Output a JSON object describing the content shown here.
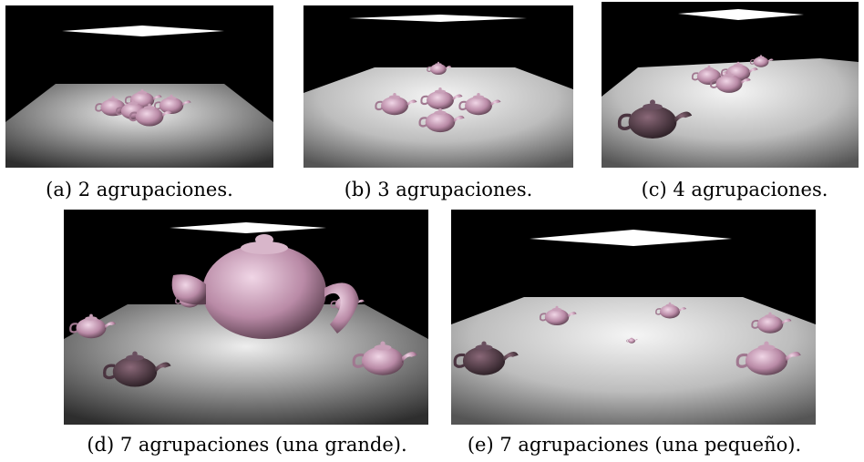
{
  "figures": [
    {
      "id": "a",
      "caption": "(a) 2 agrupaciones."
    },
    {
      "id": "b",
      "caption": "(b) 3 agrupaciones."
    },
    {
      "id": "c",
      "caption": "(c) 4 agrupaciones."
    },
    {
      "id": "d",
      "caption": "(d) 7 agrupaciones (una grande)."
    },
    {
      "id": "e",
      "caption": "(e) 7 agrupaciones (una pequeño)."
    }
  ],
  "colors": {
    "background": "#000000",
    "floor_light": "#f2f2f2",
    "floor_dark": "#3a3a3a",
    "light_panel": "#ffffff",
    "teapot": "#c8a0b8"
  }
}
